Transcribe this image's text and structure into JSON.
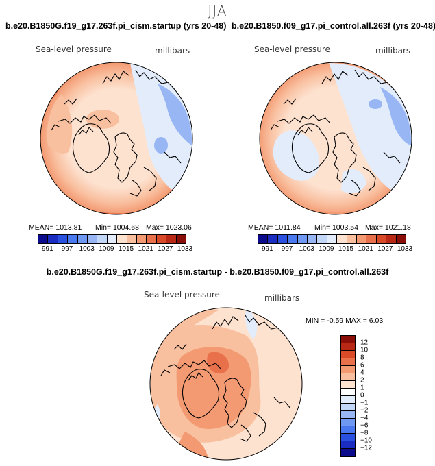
{
  "season": "JJA",
  "panels": {
    "left": {
      "title": "b.e20.B1850G.f19_g17.263f.pi_cism.startup (yrs 20-48)",
      "field": "Sea-level pressure",
      "units": "millibars",
      "mean": "MEAN= 1013.81",
      "min": "Min= 1004.68",
      "max": "Max= 1023.06"
    },
    "right": {
      "title": "b.e20.B1850.f09_g17.pi_control.all.263f (yrs 20-48)",
      "field": "Sea-level pressure",
      "units": "millibars",
      "mean": "MEAN= 1011.84",
      "min": "Min= 1003.54",
      "max": "Max= 1021.18"
    },
    "diff": {
      "title": "b.e20.B1850G.f19_g17.263f.pi_cism.startup - b.e20.B1850.f09_g17.pi_control.all.263f",
      "field": "Sea-level pressure",
      "units": "millibars",
      "minmax": "MIN =  -0.59 MAX =   6.03"
    }
  },
  "colorbar_abs": {
    "colors": [
      "#0b0b8c",
      "#1b2cc0",
      "#2a50e0",
      "#4a78ee",
      "#6f98f2",
      "#98b6f4",
      "#c2d6f8",
      "#e2ecfb",
      "#fde2d0",
      "#f9c0a0",
      "#f39a72",
      "#e8704a",
      "#d84a28",
      "#b82814",
      "#8a0e08"
    ],
    "labels": [
      "991",
      "997",
      "1003",
      "1009",
      "1015",
      "1021",
      "1027",
      "1033"
    ]
  },
  "colorbar_diff": {
    "colors": [
      "#8a0e08",
      "#b82814",
      "#d84a28",
      "#e8704a",
      "#f39a72",
      "#f9c0a0",
      "#fde2d0",
      "#ffffff",
      "#e2ecfb",
      "#c2d6f8",
      "#98b6f4",
      "#6f98f2",
      "#4a78ee",
      "#2a50e0",
      "#1b2cc0",
      "#0b0b8c"
    ],
    "labels": [
      "12",
      "10",
      "8",
      "6",
      "4",
      "2",
      "1",
      "0",
      "−1",
      "−2",
      "−4",
      "−6",
      "−8",
      "−10",
      "−12"
    ]
  }
}
